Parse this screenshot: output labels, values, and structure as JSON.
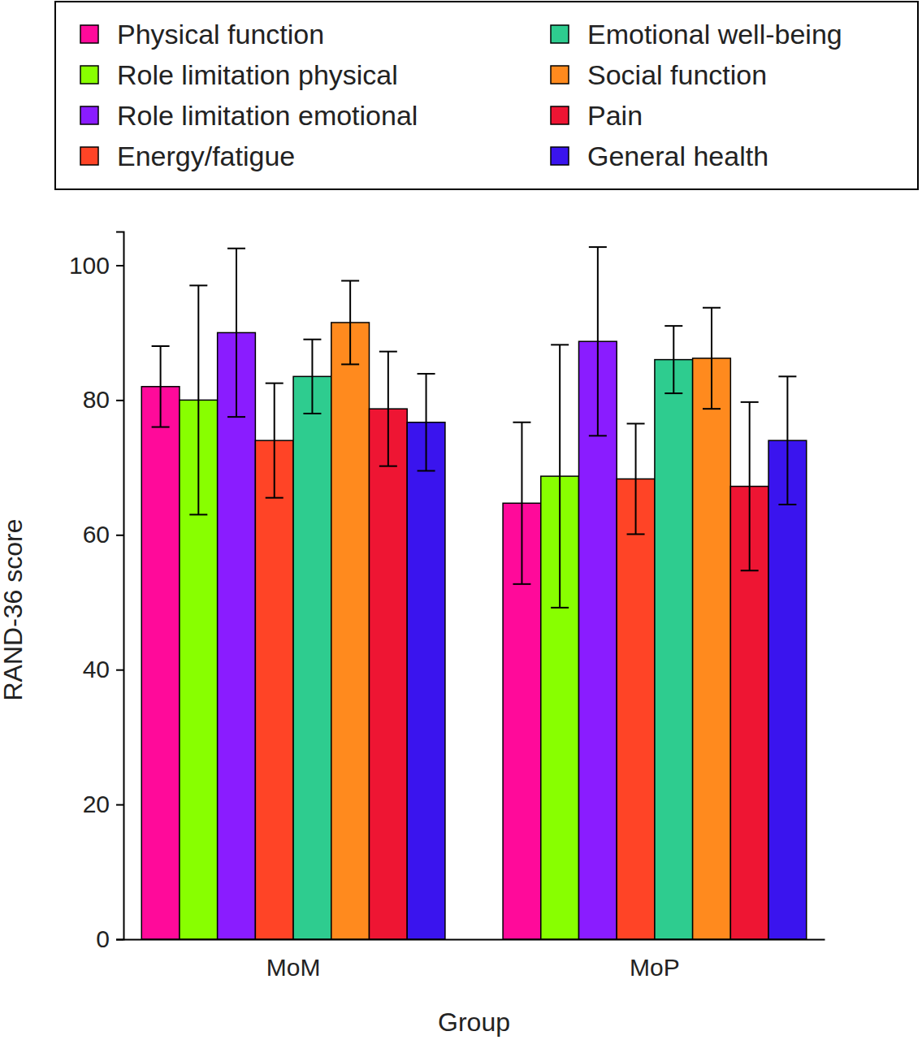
{
  "chart_data": {
    "type": "bar",
    "x_label": "Group",
    "y_label": "RAND-36 score",
    "categories": [
      "MoM",
      "MoP"
    ],
    "ylim": [
      0,
      105
    ],
    "yticks": [
      0,
      20,
      40,
      60,
      80,
      100
    ],
    "grid": false,
    "legend": "top",
    "series": [
      {
        "name": "Physical function",
        "color": "#ff0a9a",
        "values": [
          82,
          64.7
        ],
        "errors": [
          6,
          12
        ]
      },
      {
        "name": "Role limitation physical",
        "color": "#88ff00",
        "values": [
          80,
          68.7
        ],
        "errors": [
          17,
          19.5
        ]
      },
      {
        "name": "Role limitation emotional",
        "color": "#8a1cff",
        "values": [
          90,
          88.7
        ],
        "errors": [
          12.5,
          14
        ]
      },
      {
        "name": "Energy/fatigue",
        "color": "#ff4426",
        "values": [
          74,
          68.3
        ],
        "errors": [
          8.5,
          8.2
        ]
      },
      {
        "name": "Emotional well-being",
        "color": "#2ecc8f",
        "values": [
          83.5,
          86
        ],
        "errors": [
          5.5,
          5
        ]
      },
      {
        "name": "Social function",
        "color": "#ff8a1e",
        "values": [
          91.5,
          86.2
        ],
        "errors": [
          6.2,
          7.5
        ]
      },
      {
        "name": "Pain",
        "color": "#ee1533",
        "values": [
          78.7,
          67.2
        ],
        "errors": [
          8.5,
          12.5
        ]
      },
      {
        "name": "General health",
        "color": "#3a14ee",
        "values": [
          76.7,
          74
        ],
        "errors": [
          7.2,
          9.5
        ]
      }
    ]
  }
}
